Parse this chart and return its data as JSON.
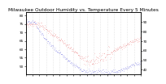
{
  "title": "Milwaukee Outdoor Humidity vs. Temperature Every 5 Minutes",
  "temp_color": "#DD0000",
  "hum_color": "#0000CC",
  "bg_color": "#ffffff",
  "n_points": 288,
  "ylim_left": [
    45,
    82
  ],
  "ylim_right": [
    35,
    100
  ],
  "yticks_left": [
    50,
    55,
    60,
    65,
    70,
    75,
    80
  ],
  "yticks_right": [
    40,
    50,
    60,
    70,
    80,
    90
  ],
  "title_fontsize": 4.2,
  "tick_fontsize": 3.0,
  "marker_size": 0.5,
  "grid_color": "#cccccc",
  "n_xgrid": 17
}
